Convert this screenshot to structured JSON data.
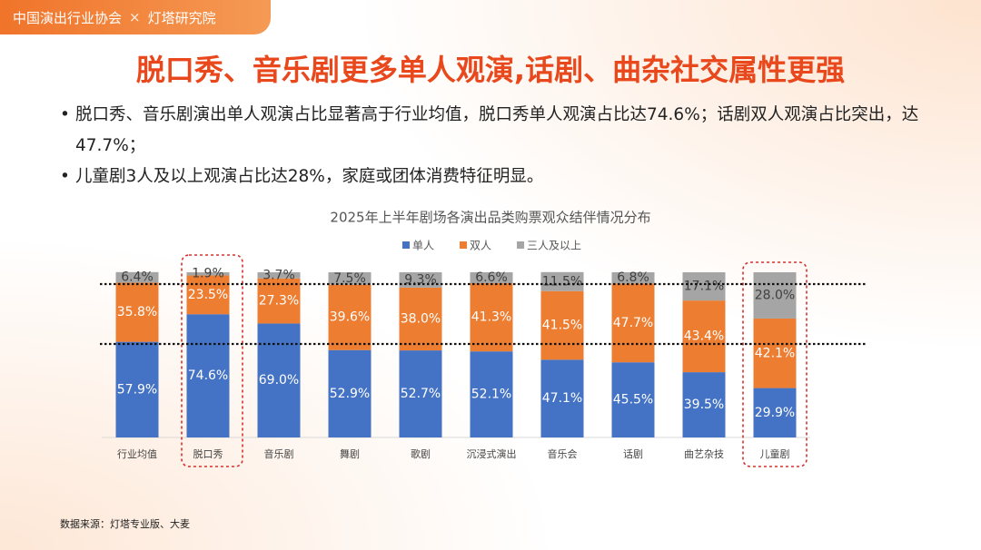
{
  "header": {
    "org": "中国演出行业协会",
    "separator": "×",
    "partner": "灯塔研究院"
  },
  "title": "脱口秀、音乐剧更多单人观演,话剧、曲杂社交属性更强",
  "bullets": [
    "脱口秀、音乐剧演出单人观演占比显著高于行业均值，脱口秀单人观演占比达74.6%；话剧双人观演占比突出，达47.7%；",
    "儿童剧3人及以上观演占比达28%，家庭或团体消费特征明显。"
  ],
  "source": "数据来源：灯塔专业版、大麦",
  "chart_data": {
    "type": "stacked-bar",
    "title": "2025年上半年剧场各演出品类购票观众结伴情况分布",
    "categories": [
      "行业均值",
      "脱口秀",
      "音乐剧",
      "舞剧",
      "歌剧",
      "沉浸式演出",
      "音乐会",
      "话剧",
      "曲艺杂技",
      "儿童剧"
    ],
    "ylim": [
      0,
      100
    ],
    "series": [
      {
        "name": "单人",
        "color": "#4472c4",
        "values": [
          57.9,
          74.6,
          69.0,
          52.9,
          52.7,
          52.1,
          47.1,
          45.5,
          39.5,
          29.9
        ],
        "value_labels": [
          "57.9%",
          "74.6%",
          "69.0%",
          "52.9%",
          "52.7%",
          "52.1%",
          "47.1%",
          "45.5%",
          "39.5%",
          "29.9%"
        ]
      },
      {
        "name": "双人",
        "color": "#ed7d31",
        "values": [
          35.8,
          23.5,
          27.3,
          39.6,
          38.0,
          41.3,
          41.5,
          47.7,
          43.4,
          42.1
        ],
        "value_labels": [
          "35.8%",
          "23.5%",
          "27.3%",
          "39.6%",
          "38.0%",
          "41.3%",
          "41.5%",
          "47.7%",
          "43.4%",
          "42.1%"
        ]
      },
      {
        "name": "三人及以上",
        "color": "#a5a5a5",
        "values": [
          6.4,
          1.9,
          3.7,
          7.5,
          9.3,
          6.6,
          11.5,
          6.8,
          17.1,
          28.0
        ],
        "value_labels": [
          "6.4%",
          "1.9%",
          "3.7%",
          "7.5%",
          "9.3%",
          "6.6%",
          "11.5%",
          "6.8%",
          "17.1%",
          "28.0%"
        ]
      }
    ],
    "legend": "top"
  }
}
